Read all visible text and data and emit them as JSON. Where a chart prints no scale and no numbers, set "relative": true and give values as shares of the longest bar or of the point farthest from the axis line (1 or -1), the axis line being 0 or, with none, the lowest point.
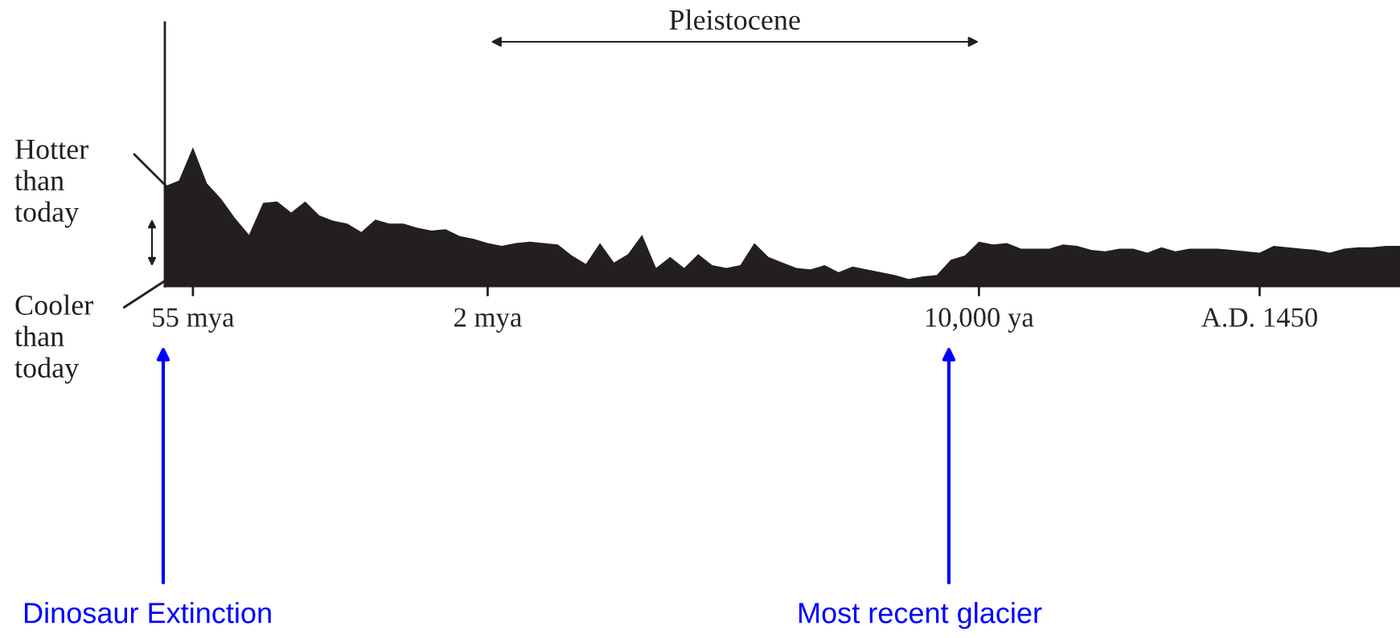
{
  "chart_data": {
    "type": "area",
    "relative": true,
    "color": "#231f20",
    "categories": [
      null,
      null,
      "55 mya",
      null,
      null,
      null,
      null,
      null,
      null,
      null,
      null,
      null,
      null,
      null,
      null,
      null,
      null,
      null,
      null,
      null,
      null,
      null,
      null,
      "2 mya",
      null,
      null,
      null,
      null,
      null,
      null,
      null,
      null,
      null,
      null,
      null,
      null,
      null,
      null,
      null,
      null,
      null,
      null,
      null,
      null,
      null,
      null,
      null,
      null,
      null,
      null,
      null,
      null,
      null,
      null,
      null,
      null,
      null,
      null,
      "10,000 ya",
      null,
      null,
      null,
      null,
      null,
      null,
      null,
      null,
      null,
      null,
      null,
      null,
      null,
      null,
      null,
      null,
      null,
      null,
      null,
      "A.D. 1450",
      null,
      null,
      null,
      null,
      null,
      null,
      null,
      null,
      null,
      null
    ],
    "values": [
      0.72,
      0.76,
      1.0,
      0.74,
      0.63,
      0.49,
      0.37,
      0.6,
      0.61,
      0.53,
      0.61,
      0.51,
      0.47,
      0.45,
      0.39,
      0.48,
      0.45,
      0.45,
      0.42,
      0.4,
      0.41,
      0.36,
      0.34,
      0.31,
      0.29,
      0.31,
      0.32,
      0.31,
      0.3,
      0.22,
      0.16,
      0.31,
      0.17,
      0.23,
      0.37,
      0.13,
      0.21,
      0.13,
      0.23,
      0.15,
      0.13,
      0.15,
      0.31,
      0.21,
      0.17,
      0.13,
      0.12,
      0.15,
      0.1,
      0.14,
      0.12,
      0.1,
      0.08,
      0.05,
      0.07,
      0.08,
      0.19,
      0.22,
      0.32,
      0.3,
      0.31,
      0.27,
      0.27,
      0.27,
      0.3,
      0.29,
      0.26,
      0.25,
      0.27,
      0.27,
      0.24,
      0.28,
      0.25,
      0.27,
      0.27,
      0.27,
      0.26,
      0.25,
      0.24,
      0.29,
      0.28,
      0.27,
      0.26,
      0.24,
      0.27,
      0.28,
      0.28,
      0.29,
      0.29
    ],
    "annotations": [
      "Pleistocene",
      "Hotter\nthan\ntoday",
      "Cooler\nthan\ntoday",
      "Dinosaur Extinction",
      "Most recent glacier"
    ],
    "grid": false,
    "legend": false
  }
}
